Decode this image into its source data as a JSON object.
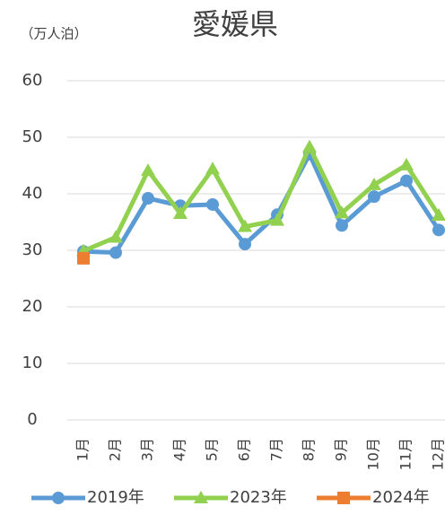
{
  "chart_data": {
    "type": "line",
    "title": "愛媛県",
    "y_label": "（万人泊）",
    "categories": [
      "1月",
      "2月",
      "3月",
      "4月",
      "5月",
      "6月",
      "7月",
      "8月",
      "9月",
      "10月",
      "11月",
      "12月"
    ],
    "series": [
      {
        "name": "2019年",
        "color": "#5b9bd5",
        "marker": "circle",
        "values": [
          29.8,
          29.6,
          39.2,
          37.9,
          38.1,
          31.1,
          36.3,
          47.0,
          34.4,
          39.5,
          42.3,
          33.6
        ]
      },
      {
        "name": "2023年",
        "color": "#92d050",
        "marker": "triangle",
        "values": [
          29.9,
          32.3,
          44.1,
          36.5,
          44.4,
          34.2,
          35.3,
          48.3,
          36.6,
          41.6,
          45.1,
          36.2
        ]
      },
      {
        "name": "2024年",
        "color": "#ed7d31",
        "marker": "square",
        "values": [
          28.6,
          null,
          null,
          null,
          null,
          null,
          null,
          null,
          null,
          null,
          null,
          null
        ]
      }
    ],
    "ylim": [
      0,
      60
    ],
    "yticks": [
      0,
      10,
      20,
      30,
      40,
      50,
      60
    ],
    "grid": true,
    "legend": "bottom"
  }
}
